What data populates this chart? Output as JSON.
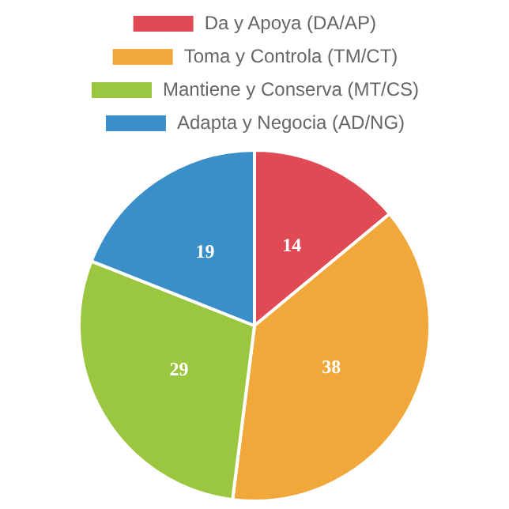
{
  "chart_data": {
    "type": "pie",
    "categories": [
      "Da y Apoya (DA/AP)",
      "Toma y Controla (TM/CT)",
      "Mantiene y Conserva (MT/CS)",
      "Adapta y Negocia (AD/NG)"
    ],
    "values": [
      14,
      38,
      29,
      19
    ],
    "colors": [
      "#e04a55",
      "#f0a83a",
      "#9bc63f",
      "#3a8fc8"
    ],
    "data_labels": true,
    "legend": "top"
  }
}
